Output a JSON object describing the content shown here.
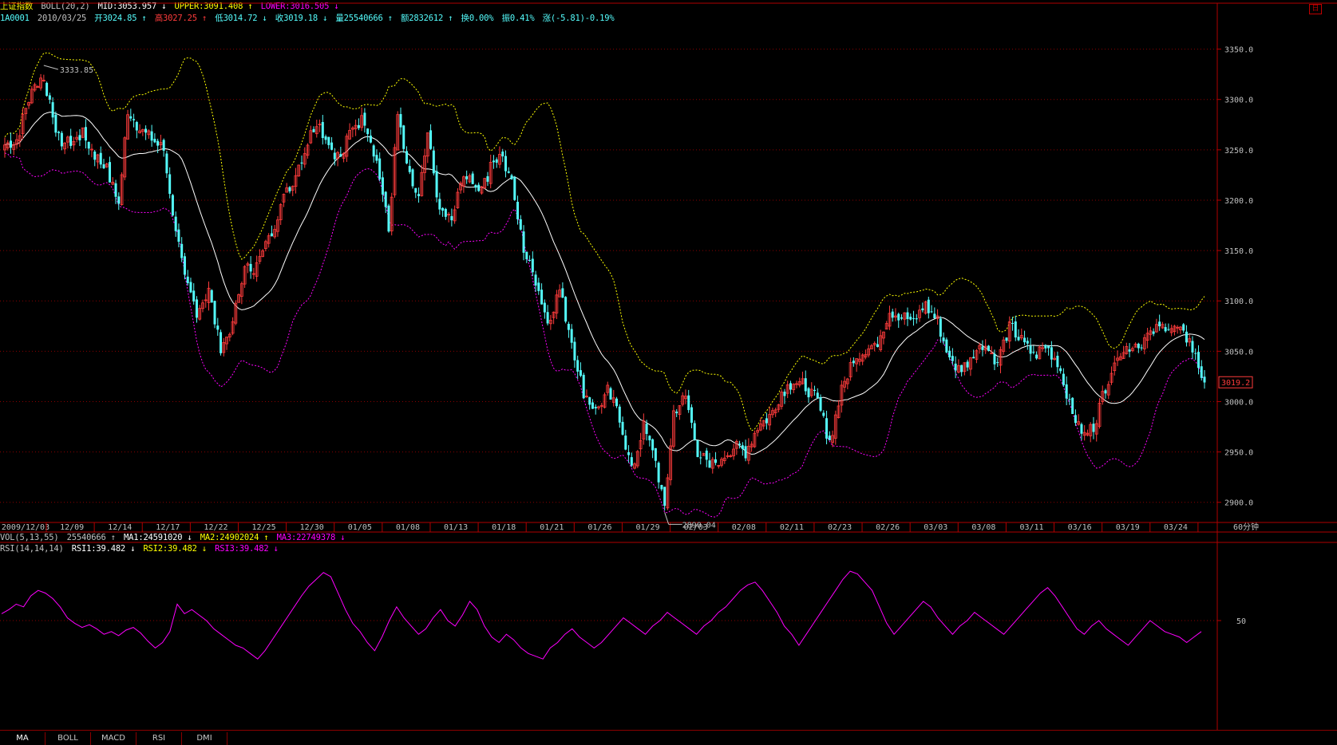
{
  "window": {
    "corner_button": "日"
  },
  "header": {
    "index_name": "上证指数",
    "boll_label": "BOLL(20,2)",
    "mid": "MID:3053.957",
    "upper": "UPPER:3091.408",
    "lower": "LOWER:3016.505",
    "code": "1A0001",
    "date": "2010/03/25",
    "open": "开3024.85",
    "high": "高3027.25",
    "low": "低3014.72",
    "close": "收3019.18",
    "volume": "量25540666",
    "amount": "额2832612",
    "turnover": "换0.00%",
    "amplitude": "振0.41%",
    "change": "涨(-5.81)-0.19%"
  },
  "vol_header": {
    "label": "VOL(5,13,55)",
    "value": "25540666",
    "ma1": "MA1:24591020",
    "ma2": "MA2:24902024",
    "ma3": "MA3:22749378"
  },
  "rsi_header": {
    "label": "RSI(14,14,14)",
    "rsi1": "RSI1:39.482",
    "rsi2": "RSI2:39.482",
    "rsi3": "RSI3:39.482"
  },
  "tabs": [
    {
      "label": "MA"
    },
    {
      "label": "BOLL"
    },
    {
      "label": "MACD"
    },
    {
      "label": "RSI"
    },
    {
      "label": "DMI"
    }
  ],
  "colors": {
    "background": "#000000",
    "grid": "#8b0000",
    "axis_text": "#c0c0c0",
    "up_candle": "#ff3c3c",
    "down_candle": "#54fcfc",
    "mid_line": "#ffffff",
    "upper_band": "#ffff00",
    "lower_band": "#ff00ff",
    "rsi_line": "#ff00ff"
  },
  "chart_data": [
    {
      "type": "candlestick",
      "ylim": [
        2880,
        3375
      ],
      "y_ticks": [
        "2900.0",
        "2950.0",
        "3000.0",
        "3050.0",
        "3100.0",
        "3150.0",
        "3200.0",
        "3250.0",
        "3300.0",
        "3350.0"
      ],
      "x_ticks": [
        "2009/12/03",
        "12/09",
        "12/14",
        "12/17",
        "12/22",
        "12/25",
        "12/30",
        "01/05",
        "01/08",
        "01/13",
        "01/18",
        "01/21",
        "01/26",
        "01/29",
        "02/03",
        "02/08",
        "02/11",
        "02/23",
        "02/26",
        "03/03",
        "03/08",
        "03/11",
        "03/16",
        "03/19",
        "03/24"
      ],
      "period_label": "60分钟",
      "current_price": "3019.2",
      "annotations": [
        {
          "text": "3333.85",
          "value": 3333.85
        },
        {
          "text": "2890.04",
          "value": 2890.04
        }
      ],
      "anchor_points": [
        {
          "bar": 0,
          "close": 3255
        },
        {
          "bar": 4,
          "close": 3260
        },
        {
          "bar": 8,
          "close": 3300
        },
        {
          "bar": 12,
          "close": 3325
        },
        {
          "bar": 15,
          "close": 3300
        },
        {
          "bar": 18,
          "close": 3260
        },
        {
          "bar": 22,
          "close": 3255
        },
        {
          "bar": 26,
          "close": 3265
        },
        {
          "bar": 30,
          "close": 3245
        },
        {
          "bar": 34,
          "close": 3230
        },
        {
          "bar": 38,
          "close": 3195
        },
        {
          "bar": 41,
          "close": 3290
        },
        {
          "bar": 45,
          "close": 3270
        },
        {
          "bar": 49,
          "close": 3260
        },
        {
          "bar": 53,
          "close": 3250
        },
        {
          "bar": 56,
          "close": 3190
        },
        {
          "bar": 60,
          "close": 3120
        },
        {
          "bar": 64,
          "close": 3090
        },
        {
          "bar": 68,
          "close": 3110
        },
        {
          "bar": 72,
          "close": 3050
        },
        {
          "bar": 76,
          "close": 3080
        },
        {
          "bar": 80,
          "close": 3130
        },
        {
          "bar": 84,
          "close": 3135
        },
        {
          "bar": 88,
          "close": 3160
        },
        {
          "bar": 92,
          "close": 3195
        },
        {
          "bar": 96,
          "close": 3220
        },
        {
          "bar": 100,
          "close": 3250
        },
        {
          "bar": 104,
          "close": 3280
        },
        {
          "bar": 108,
          "close": 3255
        },
        {
          "bar": 112,
          "close": 3240
        },
        {
          "bar": 116,
          "close": 3275
        },
        {
          "bar": 120,
          "close": 3280
        },
        {
          "bar": 124,
          "close": 3240
        },
        {
          "bar": 128,
          "close": 3170
        },
        {
          "bar": 131,
          "close": 3285
        },
        {
          "bar": 134,
          "close": 3230
        },
        {
          "bar": 138,
          "close": 3200
        },
        {
          "bar": 141,
          "close": 3265
        },
        {
          "bar": 145,
          "close": 3190
        },
        {
          "bar": 149,
          "close": 3180
        },
        {
          "bar": 153,
          "close": 3225
        },
        {
          "bar": 157,
          "close": 3210
        },
        {
          "bar": 161,
          "close": 3225
        },
        {
          "bar": 165,
          "close": 3250
        },
        {
          "bar": 169,
          "close": 3215
        },
        {
          "bar": 173,
          "close": 3150
        },
        {
          "bar": 177,
          "close": 3120
        },
        {
          "bar": 181,
          "close": 3080
        },
        {
          "bar": 185,
          "close": 3110
        },
        {
          "bar": 189,
          "close": 3060
        },
        {
          "bar": 193,
          "close": 3010
        },
        {
          "bar": 197,
          "close": 2990
        },
        {
          "bar": 201,
          "close": 3010
        },
        {
          "bar": 205,
          "close": 2985
        },
        {
          "bar": 209,
          "close": 2930
        },
        {
          "bar": 213,
          "close": 2975
        },
        {
          "bar": 217,
          "close": 2940
        },
        {
          "bar": 220,
          "close": 2895
        },
        {
          "bar": 223,
          "close": 2990
        },
        {
          "bar": 227,
          "close": 3005
        },
        {
          "bar": 231,
          "close": 2950
        },
        {
          "bar": 235,
          "close": 2935
        },
        {
          "bar": 239,
          "close": 2945
        },
        {
          "bar": 243,
          "close": 2955
        },
        {
          "bar": 247,
          "close": 2950
        },
        {
          "bar": 251,
          "close": 2975
        },
        {
          "bar": 255,
          "close": 2985
        },
        {
          "bar": 259,
          "close": 3010
        },
        {
          "bar": 263,
          "close": 3020
        },
        {
          "bar": 267,
          "close": 3015
        },
        {
          "bar": 271,
          "close": 3000
        },
        {
          "bar": 275,
          "close": 2960
        },
        {
          "bar": 279,
          "close": 3010
        },
        {
          "bar": 283,
          "close": 3045
        },
        {
          "bar": 287,
          "close": 3050
        },
        {
          "bar": 291,
          "close": 3060
        },
        {
          "bar": 295,
          "close": 3090
        },
        {
          "bar": 299,
          "close": 3085
        },
        {
          "bar": 303,
          "close": 3080
        },
        {
          "bar": 307,
          "close": 3095
        },
        {
          "bar": 311,
          "close": 3080
        },
        {
          "bar": 315,
          "close": 3040
        },
        {
          "bar": 319,
          "close": 3030
        },
        {
          "bar": 323,
          "close": 3050
        },
        {
          "bar": 327,
          "close": 3055
        },
        {
          "bar": 331,
          "close": 3040
        },
        {
          "bar": 335,
          "close": 3075
        },
        {
          "bar": 339,
          "close": 3060
        },
        {
          "bar": 343,
          "close": 3045
        },
        {
          "bar": 347,
          "close": 3055
        },
        {
          "bar": 351,
          "close": 3040
        },
        {
          "bar": 355,
          "close": 3000
        },
        {
          "bar": 359,
          "close": 2965
        },
        {
          "bar": 363,
          "close": 2975
        },
        {
          "bar": 367,
          "close": 3015
        },
        {
          "bar": 371,
          "close": 3050
        },
        {
          "bar": 375,
          "close": 3055
        },
        {
          "bar": 379,
          "close": 3060
        },
        {
          "bar": 383,
          "close": 3070
        },
        {
          "bar": 387,
          "close": 3075
        },
        {
          "bar": 391,
          "close": 3070
        },
        {
          "bar": 395,
          "close": 3060
        },
        {
          "bar": 398,
          "close": 3035
        },
        {
          "bar": 400,
          "close": 3019
        }
      ],
      "bar_count": 401,
      "boll_period": 20
    },
    {
      "type": "line",
      "series": [
        {
          "name": "RSI1",
          "values": [
            55,
            58,
            62,
            60,
            68,
            72,
            70,
            66,
            60,
            52,
            48,
            45,
            47,
            44,
            40,
            42,
            39,
            43,
            45,
            41,
            35,
            30,
            34,
            42,
            62,
            55,
            58,
            54,
            50,
            44,
            40,
            36,
            32,
            30,
            26,
            22,
            28,
            36,
            44,
            52,
            60,
            68,
            75,
            80,
            85,
            82,
            70,
            58,
            48,
            42,
            34,
            28,
            38,
            50,
            60,
            52,
            46,
            40,
            44,
            52,
            58,
            50,
            46,
            54,
            64,
            58,
            46,
            38,
            34,
            40,
            36,
            30,
            26,
            24,
            22,
            30,
            34,
            40,
            44,
            38,
            34,
            30,
            34,
            40,
            46,
            52,
            48,
            44,
            40,
            46,
            50,
            56,
            52,
            48,
            44,
            40,
            46,
            50,
            56,
            60,
            66,
            72,
            76,
            78,
            72,
            64,
            56,
            46,
            40,
            32,
            40,
            48,
            56,
            64,
            72,
            80,
            86,
            84,
            78,
            72,
            60,
            48,
            40,
            46,
            52,
            58,
            64,
            60,
            52,
            46,
            40,
            46,
            50,
            56,
            52,
            48,
            44,
            40,
            46,
            52,
            58,
            64,
            70,
            74,
            68,
            60,
            52,
            44,
            40,
            46,
            50,
            44,
            40,
            36,
            32,
            38,
            44,
            50,
            46,
            42,
            40,
            38,
            34,
            38,
            42
          ],
          "color": "#ff00ff"
        }
      ],
      "ylim": [
        0,
        100
      ],
      "y_ticks": [
        "50"
      ]
    }
  ]
}
